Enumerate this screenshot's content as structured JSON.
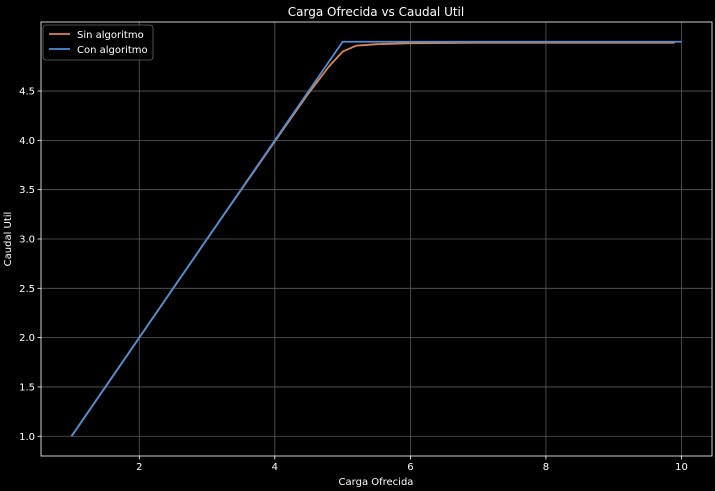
{
  "chart_data": {
    "type": "line",
    "title": "Carga Ofrecida vs Caudal Util",
    "xlabel": "Carga Ofrecida",
    "ylabel": "Caudal Util",
    "xlim": [
      0.55,
      10.45
    ],
    "ylim": [
      0.8,
      5.2
    ],
    "xticks": [
      2,
      4,
      6,
      8,
      10
    ],
    "xtick_labels": [
      "2",
      "4",
      "6",
      "8",
      "10"
    ],
    "yticks": [
      1.0,
      1.5,
      2.0,
      2.5,
      3.0,
      3.5,
      4.0,
      4.5
    ],
    "ytick_labels": [
      "1.0",
      "1.5",
      "2.0",
      "2.5",
      "3.0",
      "3.5",
      "4.0",
      "4.5"
    ],
    "grid": true,
    "legend_position": "top-left",
    "series": [
      {
        "name": "Sin algoritmo",
        "color": "#dd8452",
        "x": [
          1,
          2,
          3,
          4,
          4.5,
          4.8,
          5.0,
          5.2,
          5.5,
          6.0,
          7.0,
          8.0,
          9.0,
          9.9
        ],
        "y": [
          1,
          2,
          3,
          3.99,
          4.48,
          4.75,
          4.9,
          4.96,
          4.975,
          4.985,
          4.99,
          4.99,
          4.99,
          4.99
        ]
      },
      {
        "name": "Con algoritmo",
        "color": "#4c8fd6",
        "x": [
          1,
          2,
          3,
          4,
          5,
          6,
          7,
          8,
          9,
          10
        ],
        "y": [
          1,
          2,
          3,
          4,
          5,
          5,
          5,
          5,
          5,
          5
        ]
      }
    ]
  }
}
